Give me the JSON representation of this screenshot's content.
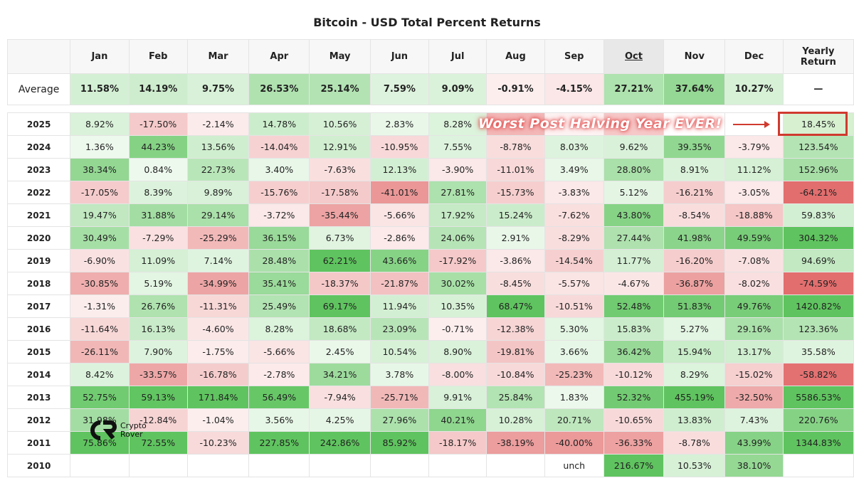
{
  "chart_data": {
    "type": "heatmap",
    "title": "Bitcoin - USD Total Percent Returns",
    "columns": [
      "Jan",
      "Feb",
      "Mar",
      "Apr",
      "May",
      "Jun",
      "Jul",
      "Aug",
      "Sep",
      "Oct",
      "Nov",
      "Dec",
      "Yearly Return"
    ],
    "average": {
      "label": "Average",
      "values": [
        "11.58%",
        "14.19%",
        "9.75%",
        "26.53%",
        "25.14%",
        "7.59%",
        "9.09%",
        "-0.91%",
        "-4.15%",
        "27.21%",
        "37.64%",
        "10.27%",
        "—"
      ]
    },
    "rows": [
      {
        "year": "2025",
        "values": [
          "8.92%",
          "-17.50%",
          "-2.14%",
          "14.78%",
          "10.56%",
          "2.83%",
          "8.28%",
          "",
          "",
          "",
          "",
          "",
          ""
        ],
        "yearly": "18.45%"
      },
      {
        "year": "2024",
        "values": [
          "1.36%",
          "44.23%",
          "13.56%",
          "-14.04%",
          "12.91%",
          "-10.95%",
          "7.55%",
          "-8.78%",
          "8.03%",
          "9.62%",
          "39.35%",
          "-3.79%"
        ],
        "yearly": "123.54%"
      },
      {
        "year": "2023",
        "values": [
          "38.34%",
          "0.84%",
          "22.73%",
          "3.40%",
          "-7.63%",
          "12.13%",
          "-3.90%",
          "-11.01%",
          "3.49%",
          "28.80%",
          "8.91%",
          "11.12%"
        ],
        "yearly": "152.96%"
      },
      {
        "year": "2022",
        "values": [
          "-17.05%",
          "8.39%",
          "9.89%",
          "-15.76%",
          "-17.58%",
          "-41.01%",
          "27.81%",
          "-15.73%",
          "-3.83%",
          "5.12%",
          "-16.21%",
          "-3.05%"
        ],
        "yearly": "-64.21%"
      },
      {
        "year": "2021",
        "values": [
          "19.47%",
          "31.88%",
          "29.14%",
          "-3.72%",
          "-35.44%",
          "-5.66%",
          "17.92%",
          "15.24%",
          "-7.62%",
          "43.80%",
          "-8.54%",
          "-18.88%"
        ],
        "yearly": "59.83%"
      },
      {
        "year": "2020",
        "values": [
          "30.49%",
          "-7.29%",
          "-25.29%",
          "36.15%",
          "6.73%",
          "-2.86%",
          "24.06%",
          "2.91%",
          "-8.29%",
          "27.44%",
          "41.98%",
          "49.59%"
        ],
        "yearly": "304.32%"
      },
      {
        "year": "2019",
        "values": [
          "-6.90%",
          "11.09%",
          "7.14%",
          "28.48%",
          "62.21%",
          "43.66%",
          "-17.92%",
          "-3.86%",
          "-14.54%",
          "11.77%",
          "-16.20%",
          "-7.08%"
        ],
        "yearly": "94.69%"
      },
      {
        "year": "2018",
        "values": [
          "-30.85%",
          "5.19%",
          "-34.99%",
          "35.41%",
          "-18.37%",
          "-21.87%",
          "30.02%",
          "-8.45%",
          "-5.57%",
          "-4.67%",
          "-36.87%",
          "-8.02%"
        ],
        "yearly": "-74.59%"
      },
      {
        "year": "2017",
        "values": [
          "-1.31%",
          "26.76%",
          "-11.31%",
          "25.49%",
          "69.17%",
          "11.94%",
          "10.35%",
          "68.47%",
          "-10.51%",
          "52.48%",
          "51.83%",
          "49.76%"
        ],
        "yearly": "1420.82%"
      },
      {
        "year": "2016",
        "values": [
          "-11.64%",
          "16.13%",
          "-4.60%",
          "8.28%",
          "18.68%",
          "23.09%",
          "-0.71%",
          "-12.38%",
          "5.30%",
          "15.83%",
          "5.27%",
          "29.16%"
        ],
        "yearly": "123.36%"
      },
      {
        "year": "2015",
        "values": [
          "-26.11%",
          "7.90%",
          "-1.75%",
          "-5.66%",
          "2.45%",
          "10.54%",
          "8.90%",
          "-19.81%",
          "3.66%",
          "36.42%",
          "15.94%",
          "13.17%"
        ],
        "yearly": "35.58%"
      },
      {
        "year": "2014",
        "values": [
          "8.42%",
          "-33.57%",
          "-16.78%",
          "-2.78%",
          "34.21%",
          "3.78%",
          "-8.00%",
          "-10.84%",
          "-25.23%",
          "-10.12%",
          "8.29%",
          "-15.02%"
        ],
        "yearly": "-58.82%"
      },
      {
        "year": "2013",
        "values": [
          "52.75%",
          "59.13%",
          "171.84%",
          "56.49%",
          "-7.94%",
          "-25.71%",
          "9.91%",
          "25.84%",
          "1.83%",
          "52.32%",
          "455.19%",
          "-32.50%"
        ],
        "yearly": "5586.53%"
      },
      {
        "year": "2012",
        "values": [
          "31.98%",
          "-12.84%",
          "-1.04%",
          "3.56%",
          "4.25%",
          "27.96%",
          "40.21%",
          "10.28%",
          "20.71%",
          "-10.65%",
          "13.83%",
          "7.43%"
        ],
        "yearly": "220.76%"
      },
      {
        "year": "2011",
        "values": [
          "75.86%",
          "72.55%",
          "-10.23%",
          "227.85%",
          "242.86%",
          "85.92%",
          "-18.17%",
          "-38.19%",
          "-40.00%",
          "-36.33%",
          "-8.78%",
          "43.99%"
        ],
        "yearly": "1344.83%"
      },
      {
        "year": "2010",
        "values": [
          "",
          "",
          "",
          "",
          "",
          "",
          "",
          "",
          "unch",
          "216.67%",
          "10.53%",
          "38.10%"
        ],
        "yearly": ""
      }
    ],
    "hidden_2025_colors": {
      "Aug": "#f3b8b8",
      "Sep": "#fdf3f3",
      "Oct": "#f6c9c9"
    },
    "highlighted_column": "Oct",
    "colors": {
      "positive": "#5cc45c",
      "negative": "#e06666",
      "highlight_border": "#d03a2f"
    }
  },
  "annotation": {
    "text": "Worst Post Halving Year EVER!"
  },
  "logo": {
    "line1": "Crypto",
    "line2": "Rover"
  }
}
